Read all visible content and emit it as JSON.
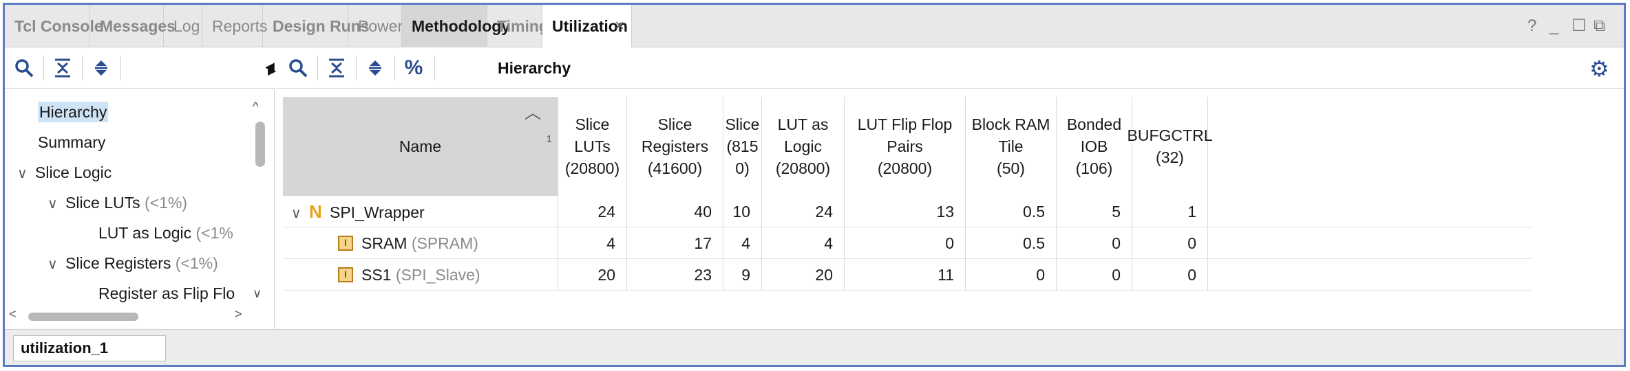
{
  "tabs": [
    {
      "label": "Tcl Console"
    },
    {
      "label": "Messages"
    },
    {
      "label": "Log"
    },
    {
      "label": "Reports"
    },
    {
      "label": "Design Runs"
    },
    {
      "label": "Power"
    },
    {
      "label": "Methodology"
    },
    {
      "label": "Timing"
    },
    {
      "label": "Utilization"
    }
  ],
  "tab_close": "×",
  "window_controls": {
    "help": "?",
    "minimize": "_",
    "restore": "☐",
    "float": "⧉"
  },
  "left": {
    "tree": [
      {
        "label": "Hierarchy",
        "extra": ""
      },
      {
        "label": "Summary",
        "extra": ""
      },
      {
        "label": "Slice Logic",
        "extra": ""
      },
      {
        "label": "Slice LUTs",
        "extra": "(<1%)"
      },
      {
        "label": "LUT as Logic",
        "extra": "(<1%"
      },
      {
        "label": "Slice Registers",
        "extra": "(<1%)"
      },
      {
        "label": "Register as Flip Flo",
        "extra": ""
      }
    ]
  },
  "right": {
    "title": "Hierarchy",
    "columns": [
      {
        "label": "Name",
        "sort": "1"
      },
      {
        "label": "Slice LUTs\n(20800)"
      },
      {
        "label": "Slice Registers\n(41600)"
      },
      {
        "label": "Slice\n(815\n0)"
      },
      {
        "label": "LUT as Logic\n(20800)"
      },
      {
        "label": "LUT Flip Flop Pairs\n(20800)"
      },
      {
        "label": "Block RAM Tile\n(50)"
      },
      {
        "label": "Bonded IOB\n(106)"
      },
      {
        "label": "BUFGCTRL\n(32)"
      }
    ],
    "rows": [
      {
        "name": "SPI_Wrapper",
        "type": "",
        "values": [
          "24",
          "40",
          "10",
          "24",
          "13",
          "0.5",
          "5",
          "1"
        ]
      },
      {
        "name": "SRAM",
        "type": "(SPRAM)",
        "values": [
          "4",
          "17",
          "4",
          "4",
          "0",
          "0.5",
          "0",
          "0"
        ]
      },
      {
        "name": "SS1",
        "type": "(SPI_Slave)",
        "values": [
          "20",
          "23",
          "9",
          "20",
          "11",
          "0",
          "0",
          "0"
        ]
      }
    ]
  },
  "bottom": {
    "tab": "utilization_1"
  },
  "colors": {
    "frame": "#5b7cc4",
    "accent": "#2a4d8f",
    "selection": "#cfe3f7"
  }
}
